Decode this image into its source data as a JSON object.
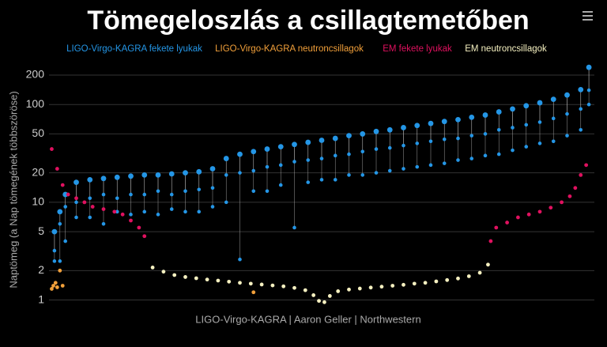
{
  "chart_data": {
    "type": "scatter",
    "title": "Tömegeloszlás a csillagtemetőben",
    "y_label": "Naptömeg (a Nap tömegének többszöröse)",
    "credit": "LIGO-Virgo-KAGRA | Aaron Geller | Northwestern",
    "log_y": true,
    "grid": true,
    "legend": "top",
    "xlim": [
      0,
      100
    ],
    "ylim": [
      0.75,
      290
    ],
    "yticks": [
      1,
      2,
      5,
      10,
      20,
      50,
      100,
      200
    ],
    "series": [
      {
        "name": "LIGO-Virgo-KAGRA fekete lyukak",
        "color": "#2496e6",
        "x": [
          1,
          2,
          3,
          5,
          7.5,
          10,
          12.5,
          15,
          17.5,
          20,
          22.5,
          25,
          27.5,
          30,
          32.5,
          35,
          37.5,
          40,
          42.5,
          45,
          47.5,
          50,
          52.5,
          55,
          57.5,
          60,
          62.5,
          65,
          67.5,
          70,
          72.5,
          75,
          77.5,
          80,
          82.5,
          85,
          87.5,
          90,
          92.5,
          95,
          97.5,
          99
        ],
        "values": [
          5,
          8,
          12,
          16,
          17,
          17.5,
          18,
          18.5,
          19,
          19,
          19.5,
          20,
          20.5,
          22,
          28,
          31,
          33,
          35,
          37,
          39,
          41,
          43,
          45,
          48,
          50,
          53,
          55,
          58,
          61,
          64,
          67,
          70,
          74,
          78,
          84,
          90,
          97,
          104,
          113,
          125,
          142,
          240
        ],
        "primary": [
          3.2,
          6,
          9,
          10,
          11,
          12,
          11,
          12,
          12,
          13,
          12,
          13,
          13.5,
          14,
          19,
          20,
          21,
          23,
          24,
          26,
          27,
          28,
          30,
          31,
          33,
          35,
          36,
          38,
          40,
          42,
          44,
          45,
          48,
          50,
          55,
          58,
          62,
          66,
          72,
          80,
          90,
          140
        ],
        "secondary": [
          2.5,
          2.5,
          4,
          7,
          7,
          6,
          8,
          7.5,
          8,
          7.5,
          8.5,
          8,
          8,
          9,
          10,
          2.6,
          13,
          13,
          15,
          5.5,
          16,
          17,
          17,
          19,
          19,
          20,
          21,
          22,
          23,
          24,
          25,
          27,
          28,
          30,
          31,
          34,
          37,
          40,
          42,
          48,
          55,
          100
        ]
      },
      {
        "name": "LIGO-Virgo-KAGRA neutroncsillagok",
        "color": "#f2a03a",
        "x": [
          0.5,
          0.8,
          1.2,
          1.5,
          2,
          2.5,
          37.5
        ],
        "values": [
          1.3,
          1.4,
          1.5,
          1.35,
          2,
          1.4,
          1.2
        ]
      },
      {
        "name": "EM fekete lyukak",
        "color": "#e0115f",
        "x": [
          0.5,
          1.5,
          2.5,
          3.5,
          5,
          6.5,
          8,
          10,
          12,
          13.5,
          15,
          16.5,
          17.5,
          81,
          82,
          84,
          86,
          88,
          90,
          92,
          94,
          95.5,
          96.5,
          97.5,
          98.5
        ],
        "values": [
          35,
          22,
          15,
          12,
          11,
          10,
          9,
          8.5,
          8,
          7.5,
          6.5,
          5.5,
          4.5,
          4,
          5.5,
          6.2,
          7,
          7.5,
          8,
          8.8,
          10,
          11.5,
          14,
          19,
          24
        ]
      },
      {
        "name": "EM neutroncsillagok",
        "color": "#f5f0c0",
        "x": [
          19,
          21,
          23,
          25,
          27,
          29,
          31,
          33,
          35,
          37,
          39,
          41,
          43,
          45,
          47,
          48.5,
          49.5,
          50.5,
          51.5,
          53,
          55,
          57,
          59,
          61,
          63,
          65,
          67,
          69,
          71,
          73,
          75,
          77,
          79,
          80.5
        ],
        "values": [
          2.15,
          1.95,
          1.8,
          1.72,
          1.67,
          1.62,
          1.58,
          1.54,
          1.5,
          1.47,
          1.44,
          1.41,
          1.38,
          1.33,
          1.26,
          1.12,
          0.98,
          0.95,
          1.1,
          1.23,
          1.28,
          1.31,
          1.34,
          1.37,
          1.4,
          1.43,
          1.47,
          1.5,
          1.55,
          1.6,
          1.66,
          1.75,
          1.9,
          2.3
        ]
      }
    ]
  }
}
